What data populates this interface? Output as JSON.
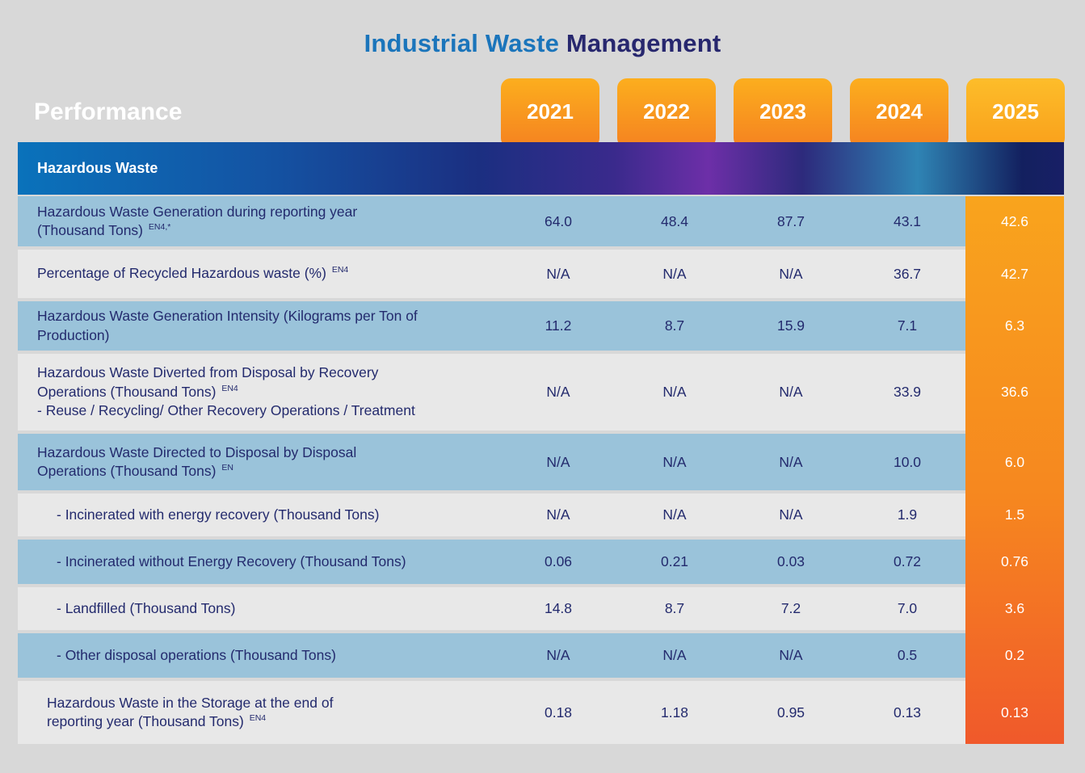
{
  "title": {
    "part1": "Industrial Waste",
    "part2": " Management"
  },
  "performance_label": "Performance",
  "section_title": "Hazardous Waste",
  "colors": {
    "page_background": "#d8d8d8",
    "title_blue": "#1b75bb",
    "title_navy": "#27276e",
    "tab_orange_top": "#fcae1e",
    "tab_orange_bottom": "#f58220",
    "highlight_tab_top": "#fdbd2a",
    "highlight_tab_bottom": "#f9a01b",
    "section_bar_blue": "#0a72bb",
    "section_bar_navy": "#13205f",
    "section_bar_purple": "#6d2fa8",
    "row_blue": "#9ac3da",
    "row_gray": "#e8e8e8",
    "text_navy": "#232a6d",
    "highlight_col_top": "#f9a41d",
    "highlight_col_bottom": "#f0592b"
  },
  "chart_data": {
    "type": "table",
    "title": "Industrial Waste Management",
    "columns": [
      "Performance",
      "2021",
      "2022",
      "2023",
      "2024",
      "2025"
    ],
    "highlight_column": "2025",
    "section": "Hazardous Waste",
    "rows": [
      {
        "lines": [
          {
            "t": "Hazardous Waste Generation during reporting year",
            "sup": ""
          },
          {
            "t": "(Thousand Tons)",
            "sup": "EN4,*"
          }
        ],
        "level": 0,
        "values": [
          "64.0",
          "48.4",
          "87.7",
          "43.1",
          "42.6"
        ]
      },
      {
        "lines": [
          {
            "t": "Percentage of Recycled Hazardous waste (%)",
            "sup": "EN4"
          }
        ],
        "level": 0,
        "values": [
          "N/A",
          "N/A",
          "N/A",
          "36.7",
          "42.7"
        ]
      },
      {
        "lines": [
          {
            "t": "Hazardous Waste Generation Intensity (Kilograms per Ton of",
            "sup": ""
          },
          {
            "t": "Production)",
            "sup": ""
          }
        ],
        "level": 0,
        "values": [
          "11.2",
          "8.7",
          "15.9",
          "7.1",
          "6.3"
        ]
      },
      {
        "lines": [
          {
            "t": "Hazardous Waste Diverted from Disposal by Recovery",
            "sup": ""
          },
          {
            "t": "Operations (Thousand Tons)",
            "sup": "EN4"
          },
          {
            "t": "- Reuse / Recycling/ Other Recovery Operations / Treatment",
            "sup": ""
          }
        ],
        "level": 0,
        "values": [
          "N/A",
          "N/A",
          "N/A",
          "33.9",
          "36.6"
        ]
      },
      {
        "lines": [
          {
            "t": "Hazardous Waste Directed to Disposal by Disposal",
            "sup": ""
          },
          {
            "t": "Operations (Thousand Tons)",
            "sup": "EN"
          }
        ],
        "level": 0,
        "values": [
          "N/A",
          "N/A",
          "N/A",
          "10.0",
          "6.0"
        ]
      },
      {
        "lines": [
          {
            "t": "- Incinerated with energy recovery (Thousand Tons)",
            "sup": ""
          }
        ],
        "level": 2,
        "values": [
          "N/A",
          "N/A",
          "N/A",
          "1.9",
          "1.5"
        ]
      },
      {
        "lines": [
          {
            "t": "- Incinerated without Energy Recovery (Thousand Tons)",
            "sup": ""
          }
        ],
        "level": 2,
        "values": [
          "0.06",
          "0.21",
          "0.03",
          "0.72",
          "0.76"
        ]
      },
      {
        "lines": [
          {
            "t": "- Landfilled (Thousand Tons)",
            "sup": ""
          }
        ],
        "level": 2,
        "values": [
          "14.8",
          "8.7",
          "7.2",
          "7.0",
          "3.6"
        ]
      },
      {
        "lines": [
          {
            "t": "- Other disposal operations (Thousand Tons)",
            "sup": ""
          }
        ],
        "level": 2,
        "values": [
          "N/A",
          "N/A",
          "N/A",
          "0.5",
          "0.2"
        ]
      },
      {
        "lines": [
          {
            "t": "Hazardous Waste in the Storage at the end of",
            "sup": ""
          },
          {
            "t": "reporting year (Thousand Tons)",
            "sup": "EN4"
          }
        ],
        "level": 1,
        "values": [
          "0.18",
          "1.18",
          "0.95",
          "0.13",
          "0.13"
        ]
      }
    ]
  }
}
